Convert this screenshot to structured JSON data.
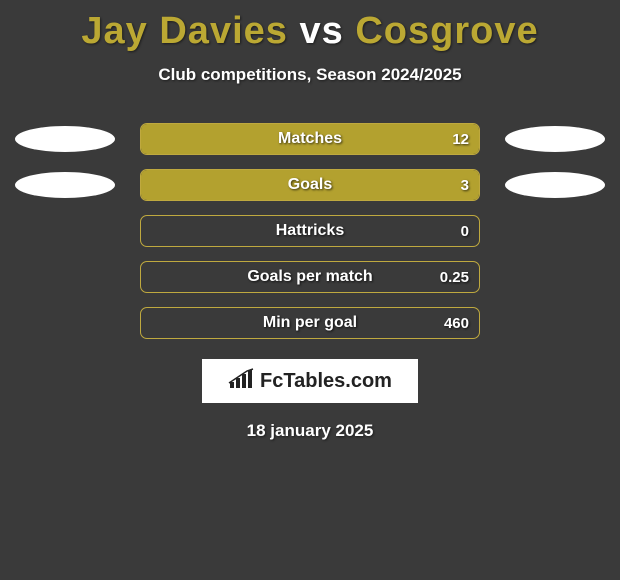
{
  "title": {
    "player1": "Jay Davies",
    "vs": "vs",
    "player2": "Cosgrove",
    "color_player": "#bba833",
    "color_vs": "#ffffff",
    "fontsize": 38
  },
  "subtitle": "Club competitions, Season 2024/2025",
  "background_color": "#3a3a3a",
  "bar_color": "#b3a12f",
  "bar_border_color": "#bfa93f",
  "metrics": [
    {
      "label": "Matches",
      "value": "12",
      "fill_pct": 100,
      "left_ellipse": true,
      "right_ellipse": true
    },
    {
      "label": "Goals",
      "value": "3",
      "fill_pct": 100,
      "left_ellipse": true,
      "right_ellipse": true
    },
    {
      "label": "Hattricks",
      "value": "0",
      "fill_pct": 0,
      "left_ellipse": false,
      "right_ellipse": false
    },
    {
      "label": "Goals per match",
      "value": "0.25",
      "fill_pct": 0,
      "left_ellipse": false,
      "right_ellipse": false
    },
    {
      "label": "Min per goal",
      "value": "460",
      "fill_pct": 0,
      "left_ellipse": false,
      "right_ellipse": false
    }
  ],
  "logo": {
    "text_prefix": "Fc",
    "text_main": "Tables",
    "text_suffix": ".com",
    "icon": "bar-chart-icon"
  },
  "date": "18 january 2025"
}
